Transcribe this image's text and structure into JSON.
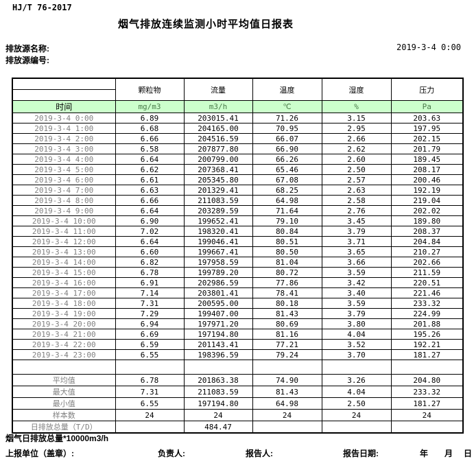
{
  "header": {
    "doc_code": "HJ/T 76-2017",
    "title": "烟气排放连续监测小时平均值日报表",
    "source_name_label": "排放源名称:",
    "source_id_label": "排放源编号:",
    "datetime": "2019-3-4 0:00"
  },
  "table": {
    "time_label": "时间",
    "column_headers": [
      "颗粒物",
      "流量",
      "温度",
      "湿度",
      "压力"
    ],
    "units": [
      "mg/m3",
      "m3/h",
      "℃",
      "%",
      "Pa"
    ],
    "rows": [
      [
        "2019-3-4 0:00",
        "6.89",
        "203015.41",
        "71.26",
        "3.15",
        "203.63"
      ],
      [
        "2019-3-4 1:00",
        "6.68",
        "204165.00",
        "70.95",
        "2.95",
        "197.95"
      ],
      [
        "2019-3-4 2:00",
        "6.66",
        "204516.59",
        "66.07",
        "2.66",
        "202.15"
      ],
      [
        "2019-3-4 3:00",
        "6.58",
        "207877.80",
        "66.90",
        "2.62",
        "201.79"
      ],
      [
        "2019-3-4 4:00",
        "6.64",
        "200799.00",
        "66.26",
        "2.60",
        "189.45"
      ],
      [
        "2019-3-4 5:00",
        "6.62",
        "207368.41",
        "65.46",
        "2.50",
        "208.17"
      ],
      [
        "2019-3-4 6:00",
        "6.61",
        "205345.80",
        "67.08",
        "2.57",
        "200.46"
      ],
      [
        "2019-3-4 7:00",
        "6.63",
        "201329.41",
        "68.25",
        "2.63",
        "192.19"
      ],
      [
        "2019-3-4 8:00",
        "6.66",
        "211083.59",
        "64.98",
        "2.58",
        "219.04"
      ],
      [
        "2019-3-4 9:00",
        "6.64",
        "203289.59",
        "71.64",
        "2.76",
        "202.02"
      ],
      [
        "2019-3-4 10:00",
        "6.90",
        "199652.41",
        "79.10",
        "3.45",
        "189.80"
      ],
      [
        "2019-3-4 11:00",
        "7.02",
        "198320.41",
        "80.84",
        "3.79",
        "208.37"
      ],
      [
        "2019-3-4 12:00",
        "6.64",
        "199046.41",
        "80.51",
        "3.71",
        "204.84"
      ],
      [
        "2019-3-4 13:00",
        "6.60",
        "199667.41",
        "80.50",
        "3.65",
        "210.27"
      ],
      [
        "2019-3-4 14:00",
        "6.82",
        "197958.59",
        "81.04",
        "3.66",
        "202.66"
      ],
      [
        "2019-3-4 15:00",
        "6.78",
        "199789.20",
        "80.72",
        "3.59",
        "211.59"
      ],
      [
        "2019-3-4 16:00",
        "6.91",
        "202986.59",
        "77.86",
        "3.42",
        "220.51"
      ],
      [
        "2019-3-4 17:00",
        "7.14",
        "203801.41",
        "78.41",
        "3.40",
        "221.46"
      ],
      [
        "2019-3-4 18:00",
        "7.31",
        "200595.00",
        "80.18",
        "3.59",
        "233.32"
      ],
      [
        "2019-3-4 19:00",
        "7.29",
        "199407.00",
        "81.43",
        "3.79",
        "224.99"
      ],
      [
        "2019-3-4 20:00",
        "6.94",
        "197971.20",
        "80.69",
        "3.80",
        "201.88"
      ],
      [
        "2019-3-4 21:00",
        "6.69",
        "197194.80",
        "81.16",
        "4.04",
        "195.26"
      ],
      [
        "2019-3-4 22:00",
        "6.59",
        "201143.41",
        "77.21",
        "3.52",
        "192.21"
      ],
      [
        "2019-3-4 23:00",
        "6.55",
        "198396.59",
        "79.24",
        "3.70",
        "181.27"
      ]
    ],
    "summary": [
      {
        "label": "平均值",
        "values": [
          "6.78",
          "201863.38",
          "74.90",
          "3.26",
          "204.80"
        ]
      },
      {
        "label": "最大值",
        "values": [
          "7.31",
          "211083.59",
          "81.43",
          "4.04",
          "233.32"
        ]
      },
      {
        "label": "最小值",
        "values": [
          "6.55",
          "197194.80",
          "64.98",
          "2.50",
          "181.27"
        ]
      },
      {
        "label": "样本数",
        "values": [
          "24",
          "24",
          "24",
          "24",
          "24"
        ]
      },
      {
        "label": "日排放总量（T/D）",
        "values": [
          "",
          "484.47",
          "",
          "",
          ""
        ]
      }
    ]
  },
  "footer": {
    "total_note": "烟气日排放总量*10000m3/h",
    "report_unit_label": "上报单位（盖章）:",
    "responsible_label": "负责人:",
    "reporter_label": "报告人:",
    "report_date_label": "报告日期:",
    "year_label": "年",
    "month_label": "月",
    "day_label": "日"
  },
  "colors": {
    "unit_row_bg": "#ccffcc",
    "border": "#000000",
    "muted_text": "#808080",
    "page_bg": "#ffffff"
  }
}
